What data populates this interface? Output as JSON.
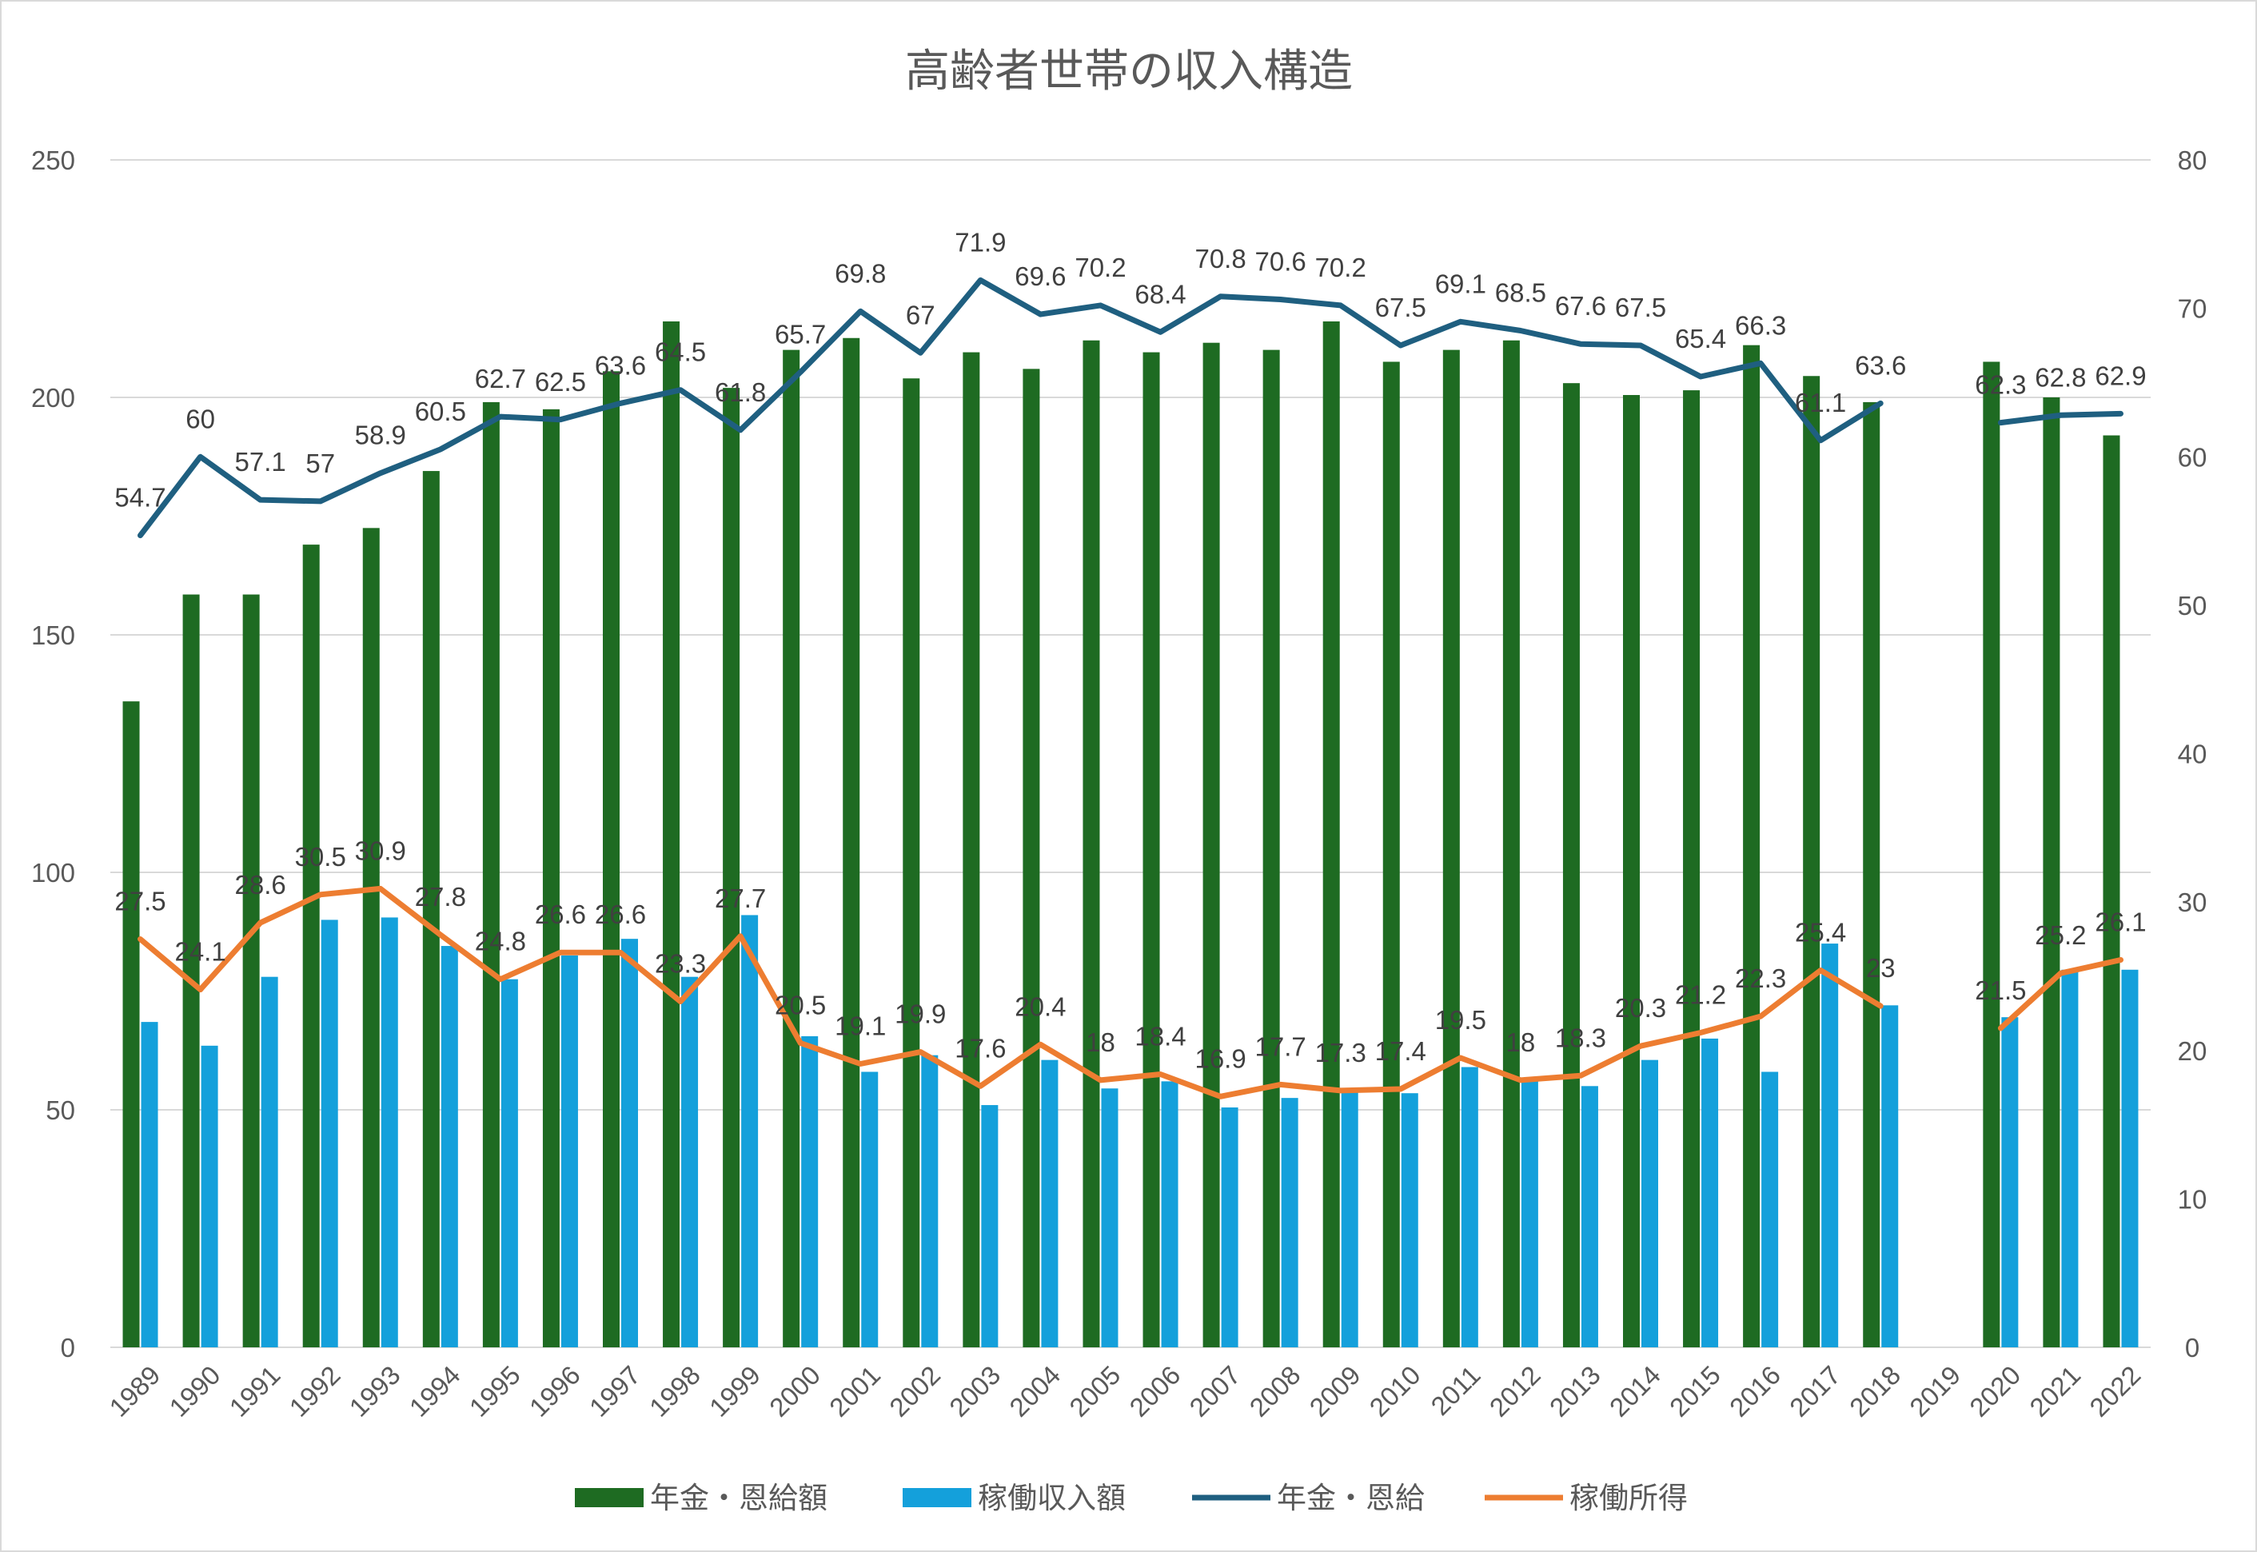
{
  "chart_data": {
    "type": "bar",
    "title": "高齢者世帯の収入構造",
    "categories": [
      "1989",
      "1990",
      "1991",
      "1992",
      "1993",
      "1994",
      "1995",
      "1996",
      "1997",
      "1998",
      "1999",
      "2000",
      "2001",
      "2002",
      "2003",
      "2004",
      "2005",
      "2006",
      "2007",
      "2008",
      "2009",
      "2010",
      "2011",
      "2012",
      "2013",
      "2014",
      "2015",
      "2016",
      "2017",
      "2018",
      "2019",
      "2020",
      "2021",
      "2022"
    ],
    "y_left": {
      "ylim": [
        0,
        250
      ],
      "ticks": [
        0,
        50,
        100,
        150,
        200,
        250
      ]
    },
    "y_right": {
      "ylim": [
        0,
        80
      ],
      "ticks": [
        0,
        10,
        20,
        30,
        40,
        50,
        60,
        70,
        80
      ]
    },
    "grid": true,
    "legend_position": "bottom",
    "series": [
      {
        "name": "年金・恩給額",
        "kind": "bar",
        "axis": "left",
        "color": "#1e6b22",
        "values": [
          136,
          158.5,
          158.5,
          169,
          172.5,
          184.5,
          199,
          197.5,
          205.5,
          216,
          202,
          210,
          212.5,
          204,
          209.5,
          206,
          212,
          209.5,
          211.5,
          210,
          216,
          207.5,
          210,
          212,
          203,
          200.5,
          201.5,
          211,
          204.5,
          199,
          null,
          207.5,
          200,
          192
        ]
      },
      {
        "name": "稼働収入額",
        "kind": "bar",
        "axis": "left",
        "color": "#14a0db",
        "values": [
          68.5,
          63.5,
          78,
          90,
          90.5,
          84.5,
          77.5,
          82.5,
          86,
          78,
          91,
          65.5,
          58,
          61.5,
          51,
          60.5,
          54.5,
          56,
          50.5,
          52.5,
          54,
          53.5,
          59,
          56,
          55,
          60.5,
          65,
          58,
          85,
          72,
          null,
          69.5,
          79.5,
          79.5
        ]
      },
      {
        "name": "年金・恩給",
        "kind": "line",
        "axis": "right",
        "color": "#1f5f80",
        "values": [
          54.7,
          60,
          57.1,
          57,
          58.9,
          60.5,
          62.7,
          62.5,
          63.6,
          64.5,
          61.8,
          65.7,
          69.8,
          67,
          71.9,
          69.6,
          70.2,
          68.4,
          70.8,
          70.6,
          70.2,
          67.5,
          69.1,
          68.5,
          67.6,
          67.5,
          65.4,
          66.3,
          61.1,
          63.6,
          null,
          62.3,
          62.8,
          62.9
        ],
        "labels": [
          "54.7",
          "60",
          "57.1",
          "57",
          "58.9",
          "60.5",
          "62.7",
          "62.5",
          "63.6",
          "64.5",
          "61.8",
          "65.7",
          "69.8",
          "67",
          "71.9",
          "69.6",
          "70.2",
          "68.4",
          "70.8",
          "70.6",
          "70.2",
          "67.5",
          "69.1",
          "68.5",
          "67.6",
          "67.5",
          "65.4",
          "66.3",
          "61.1",
          "63.6",
          "",
          "62.3",
          "62.8",
          "62.9"
        ]
      },
      {
        "name": "稼働所得",
        "kind": "line",
        "axis": "right",
        "color": "#ed7d31",
        "values": [
          27.5,
          24.1,
          28.6,
          30.5,
          30.9,
          27.8,
          24.8,
          26.6,
          26.6,
          23.3,
          27.7,
          20.5,
          19.1,
          19.9,
          17.6,
          20.4,
          18,
          18.4,
          16.9,
          17.7,
          17.3,
          17.4,
          19.5,
          18,
          18.3,
          20.3,
          21.2,
          22.3,
          25.4,
          23,
          null,
          21.5,
          25.2,
          26.1
        ],
        "labels": [
          "27.5",
          "24.1",
          "28.6",
          "30.5",
          "30.9",
          "27.8",
          "24.8",
          "26.6",
          "26.6",
          "23.3",
          "27.7",
          "20.5",
          "19.1",
          "19.9",
          "17.6",
          "20.4",
          "18",
          "18.4",
          "16.9",
          "17.7",
          "17.3",
          "17.4",
          "19.5",
          "18",
          "18.3",
          "20.3",
          "21.2",
          "22.3",
          "25.4",
          "23",
          "",
          "21.5",
          "25.2",
          "26.1"
        ]
      }
    ]
  }
}
